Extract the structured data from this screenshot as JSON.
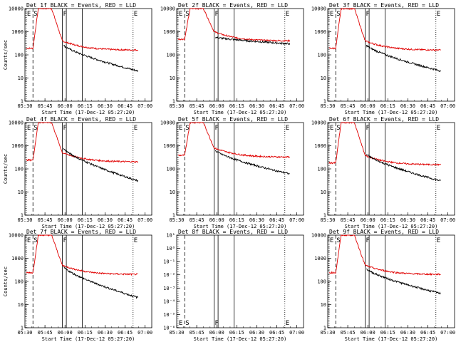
{
  "chart_data": [
    {
      "type": "line",
      "title": "Det 1f BLACK = Events, RED = LLD",
      "xlabel": "Start Time (17-Dec-12 05:27:20)",
      "ylabel": "Counts/sec",
      "ylog": true,
      "ylim": [
        1,
        10000
      ],
      "yticks": [
        "1",
        "10",
        "100",
        "1000",
        "10000"
      ],
      "xlim": [
        "05:30",
        "07:05"
      ],
      "xticks": [
        "05:30",
        "05:45",
        "06:00",
        "06:15",
        "06:30",
        "06:45",
        "07:00"
      ],
      "events_value_at_end": 20,
      "lld_value_at_end": 160,
      "events_peak": 300,
      "lld_peak": 10000,
      "markers": [
        {
          "letter": "E",
          "time": "05:31"
        },
        {
          "letter": "S",
          "time": "05:36"
        },
        {
          "letter": "F",
          "time": "05:58"
        },
        {
          "letter": "E",
          "time": "06:51"
        }
      ]
    },
    {
      "type": "line",
      "title": "Det 2f BLACK = Events, RED = LLD",
      "xlabel": "Start Time (17-Dec-12 05:27:20)",
      "ylabel": "",
      "ylog": true,
      "ylim": [
        1,
        10000
      ],
      "yticks": [
        "1",
        "10",
        "100",
        "1000",
        "10000"
      ],
      "xlim": [
        "05:30",
        "07:05"
      ],
      "xticks": [
        "05:30",
        "05:45",
        "06:00",
        "06:15",
        "06:30",
        "06:45",
        "07:00"
      ],
      "events_value_at_end": 300,
      "lld_value_at_end": 400,
      "events_peak": 600,
      "lld_peak": 10000,
      "markers": [
        {
          "letter": "E",
          "time": "05:31"
        },
        {
          "letter": "S",
          "time": "05:36"
        },
        {
          "letter": "F",
          "time": "05:58"
        },
        {
          "letter": "E",
          "time": "06:51"
        }
      ]
    },
    {
      "type": "line",
      "title": "Det 3f BLACK = Events, RED = LLD",
      "xlabel": "Start Time (17-Dec-12 05:27:20)",
      "ylabel": "",
      "ylog": true,
      "ylim": [
        1,
        10000
      ],
      "yticks": [
        "1",
        "10",
        "100",
        "1000",
        "10000"
      ],
      "xlim": [
        "05:30",
        "07:05"
      ],
      "xticks": [
        "05:30",
        "05:45",
        "06:00",
        "06:15",
        "06:30",
        "06:45",
        "07:00"
      ],
      "events_value_at_end": 20,
      "lld_value_at_end": 160,
      "events_peak": 300,
      "lld_peak": 10000,
      "markers": [
        {
          "letter": "E",
          "time": "05:31"
        },
        {
          "letter": "S",
          "time": "05:36"
        },
        {
          "letter": "F",
          "time": "05:58"
        },
        {
          "letter": "E",
          "time": "06:51"
        }
      ]
    },
    {
      "type": "line",
      "title": "Det 4f BLACK = Events, RED = LLD",
      "xlabel": "Start Time (17-Dec-12 05:27:20)",
      "ylabel": "Counts/sec",
      "ylog": true,
      "ylim": [
        1,
        10000
      ],
      "yticks": [
        "1",
        "10",
        "100",
        "1000",
        "10000"
      ],
      "xlim": [
        "05:30",
        "07:05"
      ],
      "xticks": [
        "05:30",
        "05:45",
        "06:00",
        "06:15",
        "06:30",
        "06:45",
        "07:00"
      ],
      "events_value_at_end": 30,
      "lld_value_at_end": 200,
      "events_peak": 900,
      "lld_peak": 10000,
      "markers": [
        {
          "letter": "E",
          "time": "05:31"
        },
        {
          "letter": "S",
          "time": "05:36"
        },
        {
          "letter": "F",
          "time": "05:58"
        },
        {
          "letter": "E",
          "time": "06:51"
        }
      ]
    },
    {
      "type": "line",
      "title": "Det 5f BLACK = Events, RED = LLD",
      "xlabel": "Start Time (17-Dec-12 05:27:20)",
      "ylabel": "",
      "ylog": true,
      "ylim": [
        1,
        10000
      ],
      "yticks": [
        "1",
        "10",
        "100",
        "1000",
        "10000"
      ],
      "xlim": [
        "05:30",
        "07:05"
      ],
      "xticks": [
        "05:30",
        "05:45",
        "06:00",
        "06:15",
        "06:30",
        "06:45",
        "07:00"
      ],
      "events_value_at_end": 60,
      "lld_value_at_end": 320,
      "events_peak": 700,
      "lld_peak": 10000,
      "markers": [
        {
          "letter": "E",
          "time": "05:31"
        },
        {
          "letter": "S",
          "time": "05:36"
        },
        {
          "letter": "F",
          "time": "05:58"
        },
        {
          "letter": "E",
          "time": "06:51"
        }
      ]
    },
    {
      "type": "line",
      "title": "Det 6f BLACK = Events, RED = LLD",
      "xlabel": "Start Time (17-Dec-12 05:27:20)",
      "ylabel": "",
      "ylog": true,
      "ylim": [
        1,
        10000
      ],
      "yticks": [
        "1",
        "10",
        "100",
        "1000",
        "10000"
      ],
      "xlim": [
        "05:30",
        "07:05"
      ],
      "xticks": [
        "05:30",
        "05:45",
        "06:00",
        "06:15",
        "06:30",
        "06:45",
        "07:00"
      ],
      "events_value_at_end": 30,
      "lld_value_at_end": 150,
      "events_peak": 500,
      "lld_peak": 10000,
      "markers": [
        {
          "letter": "E",
          "time": "05:31"
        },
        {
          "letter": "S",
          "time": "05:36"
        },
        {
          "letter": "F",
          "time": "05:58"
        },
        {
          "letter": "E",
          "time": "06:51"
        }
      ]
    },
    {
      "type": "line",
      "title": "Det 7f BLACK = Events, RED = LLD",
      "xlabel": "Start Time (17-Dec-12 05:27:20)",
      "ylabel": "Counts/sec",
      "ylog": true,
      "ylim": [
        1,
        10000
      ],
      "yticks": [
        "1",
        "10",
        "100",
        "1000",
        "10000"
      ],
      "xlim": [
        "05:30",
        "07:05"
      ],
      "xticks": [
        "05:30",
        "05:45",
        "06:00",
        "06:15",
        "06:30",
        "06:45",
        "07:00"
      ],
      "events_value_at_end": 20,
      "lld_value_at_end": 200,
      "events_peak": 500,
      "lld_peak": 10000,
      "markers": [
        {
          "letter": "E",
          "time": "05:31"
        },
        {
          "letter": "S",
          "time": "05:36"
        },
        {
          "letter": "F",
          "time": "05:58"
        },
        {
          "letter": "E",
          "time": "06:51"
        }
      ]
    },
    {
      "type": "line",
      "title": "Det 8f BLACK = Events, RED = LLD",
      "xlabel": "Start Time (17-Dec-12 05:27:20)",
      "ylabel": "",
      "ylog": true,
      "ylim": [
        1e-06,
        10
      ],
      "yticks": [
        "10⁰",
        "10¹"
      ],
      "xlim": [
        "05:30",
        "07:05"
      ],
      "xticks": [
        "05:30",
        "05:45",
        "06:00",
        "06:15",
        "06:30",
        "06:45",
        "07:00"
      ],
      "no_data": true,
      "markers": [
        {
          "letter": "E",
          "time": "05:31"
        },
        {
          "letter": "S",
          "time": "05:36"
        },
        {
          "letter": "F",
          "time": "05:58"
        },
        {
          "letter": "E",
          "time": "06:51"
        }
      ]
    },
    {
      "type": "line",
      "title": "Det 9f BLACK = Events, RED = LLD",
      "xlabel": "Start Time (17-Dec-12 05:27:20)",
      "ylabel": "",
      "ylog": true,
      "ylim": [
        1,
        10000
      ],
      "yticks": [
        "1",
        "10",
        "100",
        "1000",
        "10000"
      ],
      "xlim": [
        "05:30",
        "07:05"
      ],
      "xticks": [
        "05:30",
        "05:45",
        "06:00",
        "06:15",
        "06:30",
        "06:45",
        "07:00"
      ],
      "events_value_at_end": 30,
      "lld_value_at_end": 200,
      "events_peak": 400,
      "lld_peak": 10000,
      "markers": [
        {
          "letter": "E",
          "time": "05:31"
        },
        {
          "letter": "S",
          "time": "05:36"
        },
        {
          "letter": "F",
          "time": "05:58"
        },
        {
          "letter": "E",
          "time": "06:51"
        }
      ]
    }
  ],
  "colors": {
    "events": "#000000",
    "lld": "#e00000"
  }
}
